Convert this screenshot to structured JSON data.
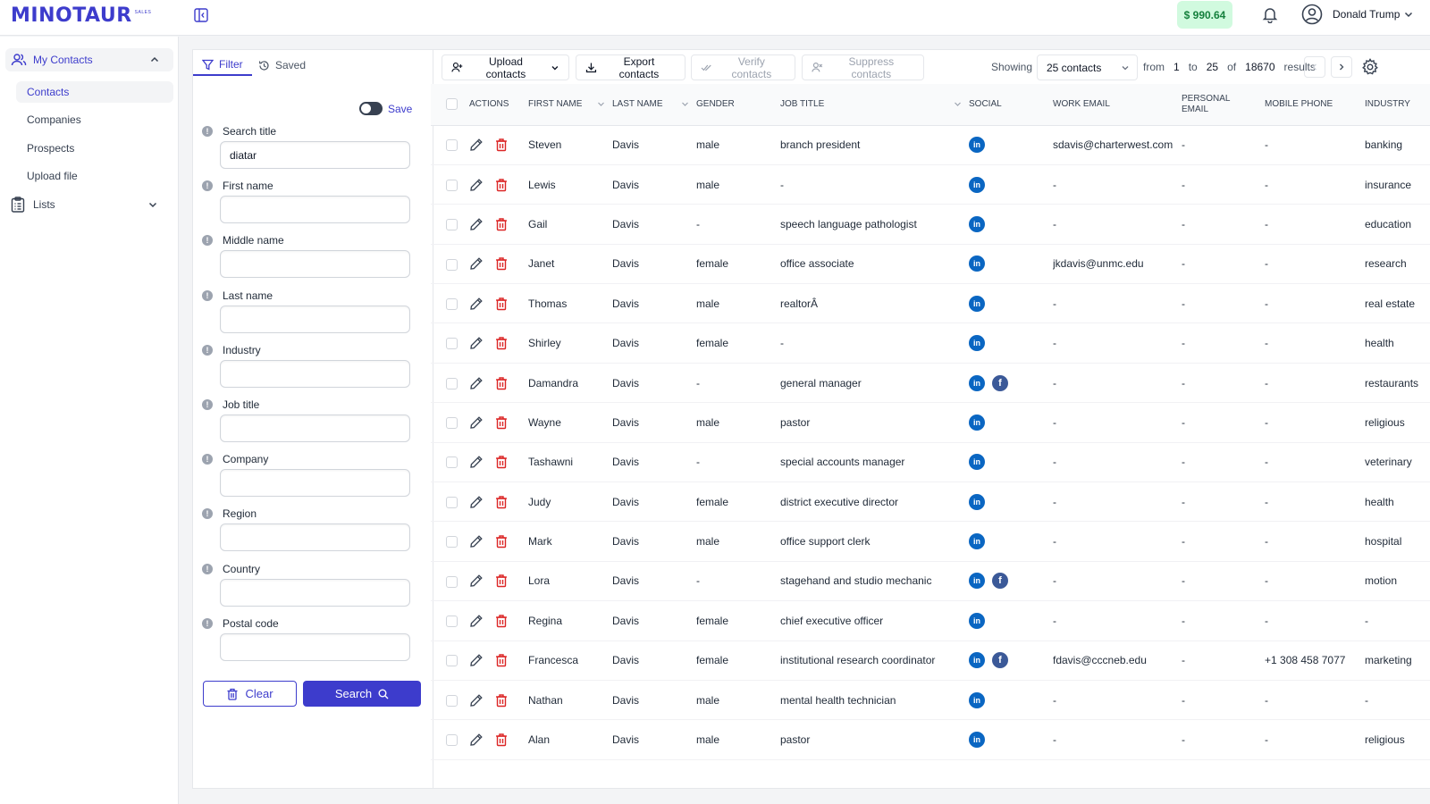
{
  "app": {
    "logo_text": "MINOTAUR",
    "logo_sub": "SALES",
    "balance": "$ 990.64",
    "user_name": "Donald Trump"
  },
  "sidebar": {
    "group_label": "My Contacts",
    "items": [
      "Contacts",
      "Companies",
      "Prospects",
      "Upload file"
    ],
    "lists_label": "Lists"
  },
  "filter": {
    "tab_filter": "Filter",
    "tab_saved": "Saved",
    "save_label": "Save",
    "fields": [
      {
        "label": "Search title",
        "value": "diatar"
      },
      {
        "label": "First name",
        "value": ""
      },
      {
        "label": "Middle name",
        "value": ""
      },
      {
        "label": "Last name",
        "value": ""
      },
      {
        "label": "Industry",
        "value": ""
      },
      {
        "label": "Job title",
        "value": ""
      },
      {
        "label": "Company",
        "value": ""
      },
      {
        "label": "Region",
        "value": ""
      },
      {
        "label": "Country",
        "value": ""
      },
      {
        "label": "Postal code",
        "value": ""
      }
    ],
    "clear_label": "Clear",
    "search_label": "Search"
  },
  "toolbar": {
    "upload_label": "Upload contacts",
    "export_label": "Export contacts",
    "verify_label": "Verify contacts",
    "suppress_label": "Suppress contacts",
    "showing_label": "Showing",
    "page_size": "25 contacts",
    "from_label": "from",
    "from_value": "1",
    "to_label": "to",
    "to_value": "25",
    "of_label": "of",
    "total": "18670",
    "results_label": "results"
  },
  "table": {
    "headers": {
      "actions": "ACTIONS",
      "first_name": "FIRST NAME",
      "last_name": "LAST NAME",
      "gender": "GENDER",
      "job_title": "JOB TITLE",
      "social": "SOCIAL",
      "work_email": "WORK EMAIL",
      "personal_email_1": "PERSONAL",
      "personal_email_2": "EMAIL",
      "mobile_phone": "MOBILE PHONE",
      "industry": "INDUSTRY"
    },
    "rows": [
      {
        "first": "Steven",
        "last": "Davis",
        "gender": "male",
        "job": "branch president",
        "fb": false,
        "work_email": "sdavis@charterwest.com",
        "personal_email": "-",
        "mobile": "-",
        "industry": "banking"
      },
      {
        "first": "Lewis",
        "last": "Davis",
        "gender": "male",
        "job": "-",
        "fb": false,
        "work_email": "-",
        "personal_email": "-",
        "mobile": "-",
        "industry": "insurance"
      },
      {
        "first": "Gail",
        "last": "Davis",
        "gender": "-",
        "job": "speech language pathologist",
        "fb": false,
        "work_email": "-",
        "personal_email": "-",
        "mobile": "-",
        "industry": "education"
      },
      {
        "first": "Janet",
        "last": "Davis",
        "gender": "female",
        "job": "office associate",
        "fb": false,
        "work_email": "jkdavis@unmc.edu",
        "personal_email": "-",
        "mobile": "-",
        "industry": "research"
      },
      {
        "first": "Thomas",
        "last": "Davis",
        "gender": "male",
        "job": "realtorÂ",
        "fb": false,
        "work_email": "-",
        "personal_email": "-",
        "mobile": "-",
        "industry": "real estate"
      },
      {
        "first": "Shirley",
        "last": "Davis",
        "gender": "female",
        "job": "-",
        "fb": false,
        "work_email": "-",
        "personal_email": "-",
        "mobile": "-",
        "industry": "health"
      },
      {
        "first": "Damandra",
        "last": "Davis",
        "gender": "-",
        "job": "general manager",
        "fb": true,
        "work_email": "-",
        "personal_email": "-",
        "mobile": "-",
        "industry": "restaurants"
      },
      {
        "first": "Wayne",
        "last": "Davis",
        "gender": "male",
        "job": "pastor",
        "fb": false,
        "work_email": "-",
        "personal_email": "-",
        "mobile": "-",
        "industry": "religious"
      },
      {
        "first": "Tashawni",
        "last": "Davis",
        "gender": "-",
        "job": "special accounts manager",
        "fb": false,
        "work_email": "-",
        "personal_email": "-",
        "mobile": "-",
        "industry": "veterinary"
      },
      {
        "first": "Judy",
        "last": "Davis",
        "gender": "female",
        "job": "district executive director",
        "fb": false,
        "work_email": "-",
        "personal_email": "-",
        "mobile": "-",
        "industry": "health"
      },
      {
        "first": "Mark",
        "last": "Davis",
        "gender": "male",
        "job": "office support clerk",
        "fb": false,
        "work_email": "-",
        "personal_email": "-",
        "mobile": "-",
        "industry": "hospital"
      },
      {
        "first": "Lora",
        "last": "Davis",
        "gender": "-",
        "job": "stagehand and studio mechanic",
        "fb": true,
        "work_email": "-",
        "personal_email": "-",
        "mobile": "-",
        "industry": "motion"
      },
      {
        "first": "Regina",
        "last": "Davis",
        "gender": "female",
        "job": "chief executive officer",
        "fb": false,
        "work_email": "-",
        "personal_email": "-",
        "mobile": "-",
        "industry": "-"
      },
      {
        "first": "Francesca",
        "last": "Davis",
        "gender": "female",
        "job": "institutional research coordinator",
        "fb": true,
        "work_email": "fdavis@cccneb.edu",
        "personal_email": "-",
        "mobile": "+1 308 458 7077",
        "industry": "marketing"
      },
      {
        "first": "Nathan",
        "last": "Davis",
        "gender": "male",
        "job": "mental health technician",
        "fb": false,
        "work_email": "-",
        "personal_email": "-",
        "mobile": "-",
        "industry": "-"
      },
      {
        "first": "Alan",
        "last": "Davis",
        "gender": "male",
        "job": "pastor",
        "fb": false,
        "work_email": "-",
        "personal_email": "-",
        "mobile": "-",
        "industry": "religious"
      }
    ],
    "linkedin_glyph": "in",
    "facebook_glyph": "f"
  },
  "colors": {
    "accent": "#3d3ccc",
    "danger": "#dc2626",
    "linkedin": "#0a66c2",
    "facebook": "#3b5998",
    "balance_bg": "#d1fadf"
  }
}
